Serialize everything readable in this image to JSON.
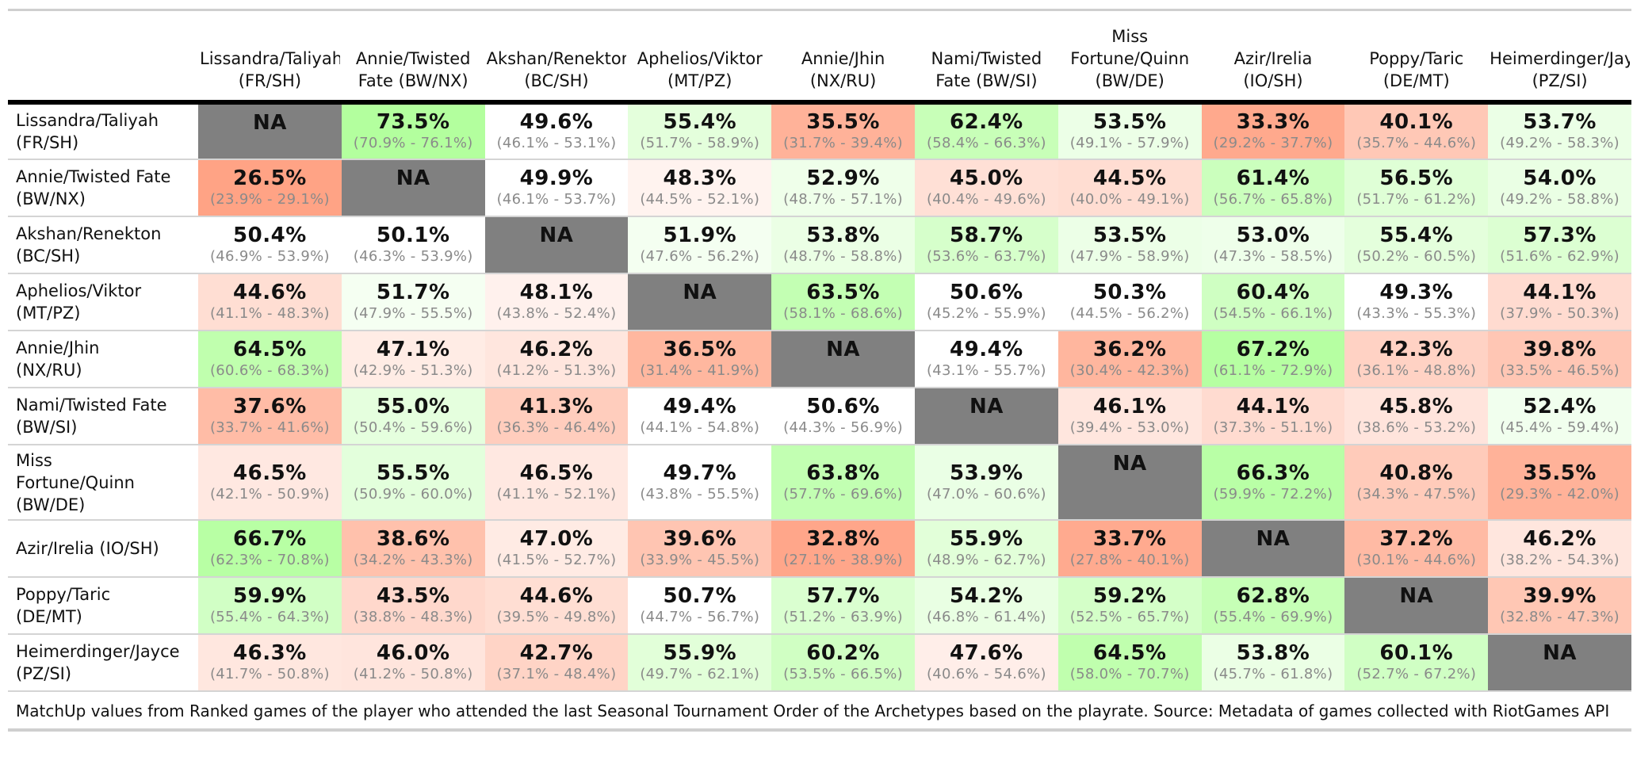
{
  "chart_data": {
    "type": "table",
    "columns": [
      "Lissandra/Taliyah (FR/SH)",
      "Annie/Twisted Fate (BW/NX)",
      "Akshan/Renekton (BC/SH)",
      "Aphelios/Viktor (MT/PZ)",
      "Annie/Jhin (NX/RU)",
      "Nami/Twisted Fate (BW/SI)",
      "Miss Fortune/Quinn (BW/DE)",
      "Azir/Irelia (IO/SH)",
      "Poppy/Taric (DE/MT)",
      "Heimerdinger/Jayce (PZ/SI)"
    ],
    "column_label_lines": [
      [
        "Lissandra/Taliyah",
        "(FR/SH)"
      ],
      [
        "Annie/Twisted",
        "Fate (BW/NX)"
      ],
      [
        "Akshan/Renekton",
        "(BC/SH)"
      ],
      [
        "Aphelios/Viktor",
        "(MT/PZ)"
      ],
      [
        "Annie/Jhin",
        "(NX/RU)"
      ],
      [
        "Nami/Twisted",
        "Fate (BW/SI)"
      ],
      [
        "Miss",
        "Fortune/Quinn",
        "(BW/DE)"
      ],
      [
        "Azir/Irelia",
        "(IO/SH)"
      ],
      [
        "Poppy/Taric",
        "(DE/MT)"
      ],
      [
        "Heimerdinger/Jayce",
        "(PZ/SI)"
      ]
    ],
    "rows": [
      {
        "label_lines": [
          "Lissandra/Taliyah",
          "(FR/SH)"
        ],
        "values": [
          null,
          73.5,
          49.6,
          55.4,
          35.5,
          62.4,
          53.5,
          33.3,
          40.1,
          53.7
        ],
        "ci": [
          null,
          "(70.9% - 76.1%)",
          "(46.1% - 53.1%)",
          "(51.7% - 58.9%)",
          "(31.7% - 39.4%)",
          "(58.4% - 66.3%)",
          "(49.1% - 57.9%)",
          "(29.2% - 37.7%)",
          "(35.7% - 44.6%)",
          "(49.2% - 58.3%)"
        ]
      },
      {
        "label_lines": [
          "Annie/Twisted Fate",
          "(BW/NX)"
        ],
        "values": [
          26.5,
          null,
          49.9,
          48.3,
          52.9,
          45.0,
          44.5,
          61.4,
          56.5,
          54.0
        ],
        "ci": [
          "(23.9% - 29.1%)",
          null,
          "(46.1% - 53.7%)",
          "(44.5% - 52.1%)",
          "(48.7% - 57.1%)",
          "(40.4% - 49.6%)",
          "(40.0% - 49.1%)",
          "(56.7% - 65.8%)",
          "(51.7% - 61.2%)",
          "(49.2% - 58.8%)"
        ]
      },
      {
        "label_lines": [
          "Akshan/Renekton",
          "(BC/SH)"
        ],
        "values": [
          50.4,
          50.1,
          null,
          51.9,
          53.8,
          58.7,
          53.5,
          53.0,
          55.4,
          57.3
        ],
        "ci": [
          "(46.9% - 53.9%)",
          "(46.3% - 53.9%)",
          null,
          "(47.6% - 56.2%)",
          "(48.7% - 58.8%)",
          "(53.6% - 63.7%)",
          "(47.9% - 58.9%)",
          "(47.3% - 58.5%)",
          "(50.2% - 60.5%)",
          "(51.6% - 62.9%)"
        ]
      },
      {
        "label_lines": [
          "Aphelios/Viktor",
          "(MT/PZ)"
        ],
        "values": [
          44.6,
          51.7,
          48.1,
          null,
          63.5,
          50.6,
          50.3,
          60.4,
          49.3,
          44.1
        ],
        "ci": [
          "(41.1% - 48.3%)",
          "(47.9% - 55.5%)",
          "(43.8% - 52.4%)",
          null,
          "(58.1% - 68.6%)",
          "(45.2% - 55.9%)",
          "(44.5% - 56.2%)",
          "(54.5% - 66.1%)",
          "(43.3% - 55.3%)",
          "(37.9% - 50.3%)"
        ]
      },
      {
        "label_lines": [
          "Annie/Jhin",
          "(NX/RU)"
        ],
        "values": [
          64.5,
          47.1,
          46.2,
          36.5,
          null,
          49.4,
          36.2,
          67.2,
          42.3,
          39.8
        ],
        "ci": [
          "(60.6% - 68.3%)",
          "(42.9% - 51.3%)",
          "(41.2% - 51.3%)",
          "(31.4% - 41.9%)",
          null,
          "(43.1% - 55.7%)",
          "(30.4% - 42.3%)",
          "(61.1% - 72.9%)",
          "(36.1% - 48.8%)",
          "(33.5% - 46.5%)"
        ]
      },
      {
        "label_lines": [
          "Nami/Twisted Fate",
          "(BW/SI)"
        ],
        "values": [
          37.6,
          55.0,
          41.3,
          49.4,
          50.6,
          null,
          46.1,
          44.1,
          45.8,
          52.4
        ],
        "ci": [
          "(33.7% - 41.6%)",
          "(50.4% - 59.6%)",
          "(36.3% - 46.4%)",
          "(44.1% - 54.8%)",
          "(44.3% - 56.9%)",
          null,
          "(39.4% - 53.0%)",
          "(37.3% - 51.1%)",
          "(38.6% - 53.2%)",
          "(45.4% - 59.4%)"
        ]
      },
      {
        "label_lines": [
          "Miss",
          "Fortune/Quinn",
          "(BW/DE)"
        ],
        "values": [
          46.5,
          55.5,
          46.5,
          49.7,
          63.8,
          53.9,
          null,
          66.3,
          40.8,
          35.5
        ],
        "ci": [
          "(42.1% - 50.9%)",
          "(50.9% - 60.0%)",
          "(41.1% - 52.1%)",
          "(43.8% - 55.5%)",
          "(57.7% - 69.6%)",
          "(47.0% - 60.6%)",
          null,
          "(59.9% - 72.2%)",
          "(34.3% - 47.5%)",
          "(29.3% - 42.0%)"
        ]
      },
      {
        "label_lines": [
          "Azir/Irelia (IO/SH)"
        ],
        "values": [
          66.7,
          38.6,
          47.0,
          39.6,
          32.8,
          55.9,
          33.7,
          null,
          37.2,
          46.2
        ],
        "ci": [
          "(62.3% - 70.8%)",
          "(34.2% - 43.3%)",
          "(41.5% - 52.7%)",
          "(33.9% - 45.5%)",
          "(27.1% - 38.9%)",
          "(48.9% - 62.7%)",
          "(27.8% - 40.1%)",
          null,
          "(30.1% - 44.6%)",
          "(38.2% - 54.3%)"
        ]
      },
      {
        "label_lines": [
          "Poppy/Taric",
          "(DE/MT)"
        ],
        "values": [
          59.9,
          43.5,
          44.6,
          50.7,
          57.7,
          54.2,
          59.2,
          62.8,
          null,
          39.9
        ],
        "ci": [
          "(55.4% - 64.3%)",
          "(38.8% - 48.3%)",
          "(39.5% - 49.8%)",
          "(44.7% - 56.7%)",
          "(51.2% - 63.9%)",
          "(46.8% - 61.4%)",
          "(52.5% - 65.7%)",
          "(55.4% - 69.9%)",
          null,
          "(32.8% - 47.3%)"
        ]
      },
      {
        "label_lines": [
          "Heimerdinger/Jayce",
          "(PZ/SI)"
        ],
        "values": [
          46.3,
          46.0,
          42.7,
          55.9,
          60.2,
          47.6,
          64.5,
          53.8,
          60.1,
          null
        ],
        "ci": [
          "(41.7% - 50.8%)",
          "(41.2% - 50.8%)",
          "(37.1% - 48.4%)",
          "(49.7% - 62.1%)",
          "(53.5% - 66.5%)",
          "(40.6% - 54.6%)",
          "(58.0% - 70.7%)",
          "(45.7% - 61.8%)",
          "(52.7% - 67.2%)",
          null
        ]
      }
    ],
    "na_label": "NA",
    "na_color": "#808080",
    "high_color": "#b3ff9e",
    "low_color": "#ffa385",
    "neutral_color": "#ffffff",
    "source_note": "MatchUp values from Ranked games of the player who attended the last Seasonal Tournament Order of the Archetypes based on the playrate. Source: Metadata of games collected with RiotGames API"
  }
}
